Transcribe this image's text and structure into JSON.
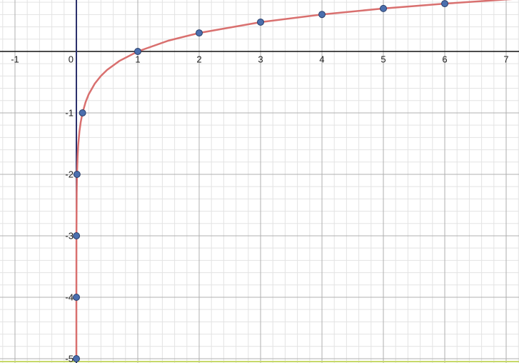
{
  "chart_data": {
    "type": "line",
    "xlim": [
      -1.244,
      7.209
    ],
    "ylim": [
      -5.07,
      0.837
    ],
    "xticks": [
      -1,
      0,
      1,
      2,
      3,
      4,
      5,
      6,
      7
    ],
    "yticks": [
      -5,
      -4,
      -3,
      -2,
      -1
    ],
    "minor_step": 0.2,
    "grid": true,
    "series": [
      {
        "color": "#d9706f",
        "x": [
          1e-05,
          0.0001,
          0.001,
          0.005,
          0.01,
          0.02,
          0.03,
          0.05,
          0.07,
          0.1,
          0.15,
          0.2,
          0.3,
          0.4,
          0.5,
          0.7,
          1,
          1.5,
          2,
          3,
          4,
          5,
          6,
          7,
          7.21
        ],
        "values": [
          -5,
          -4,
          -3,
          -2.301,
          -2,
          -1.699,
          -1.523,
          -1.301,
          -1.155,
          -1,
          -0.824,
          -0.699,
          -0.523,
          -0.398,
          -0.301,
          -0.155,
          0,
          0.176,
          0.301,
          0.477,
          0.602,
          0.699,
          0.778,
          0.845,
          0.858
        ]
      },
      {
        "type": "scatter",
        "color": "#4b6fae",
        "x": [
          1e-05,
          0.0001,
          0.001,
          0.01,
          0.1,
          1,
          2,
          3,
          4,
          5,
          6
        ],
        "values": [
          -5,
          -4,
          -3,
          -2,
          -1,
          0,
          0.301,
          0.477,
          0.602,
          0.699,
          0.778
        ]
      }
    ]
  }
}
